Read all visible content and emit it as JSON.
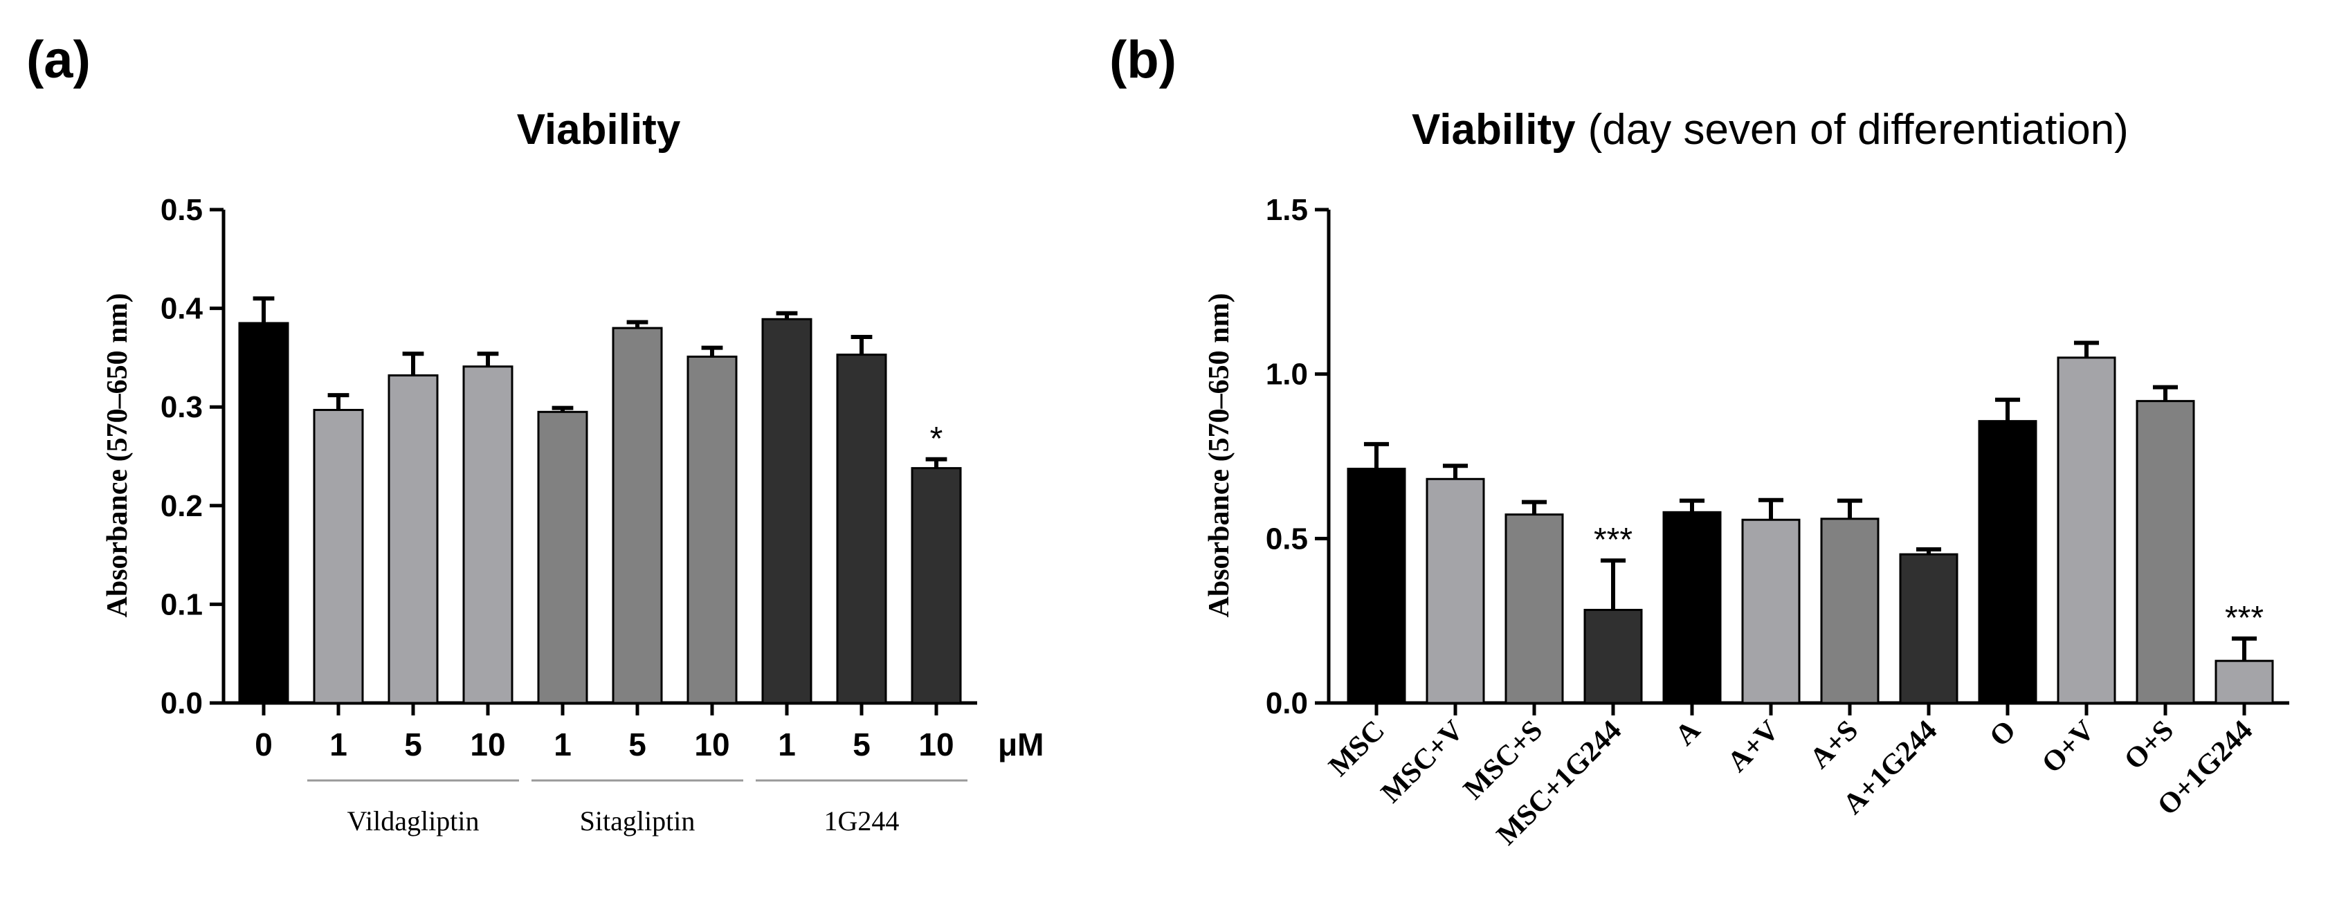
{
  "chart_data": [
    {
      "type": "bar",
      "panel_label": "(a)",
      "title": "Viability",
      "ylabel": "Absorbance (570–650 nm)",
      "ylim": [
        0,
        0.5
      ],
      "yticks": [
        "0.0",
        "0.1",
        "0.2",
        "0.3",
        "0.4",
        "0.5"
      ],
      "x_unit": "μM",
      "categories": [
        "0",
        "1",
        "5",
        "10",
        "1",
        "5",
        "10",
        "1",
        "5",
        "10"
      ],
      "values": [
        0.385,
        0.297,
        0.332,
        0.341,
        0.295,
        0.38,
        0.351,
        0.389,
        0.353,
        0.238
      ],
      "errors": [
        0.025,
        0.015,
        0.022,
        0.013,
        0.004,
        0.006,
        0.009,
        0.006,
        0.018,
        0.009
      ],
      "colors": [
        "#000000",
        "#a4a4a8",
        "#a4a4a8",
        "#a4a4a8",
        "#818181",
        "#818181",
        "#818181",
        "#303030",
        "#303030",
        "#303030"
      ],
      "groups": [
        {
          "label": "Vildagliptin",
          "start": 1,
          "end": 3
        },
        {
          "label": "Sitagliptin",
          "start": 4,
          "end": 6
        },
        {
          "label": "1G244",
          "start": 7,
          "end": 9
        }
      ],
      "annotations": [
        {
          "index": 9,
          "text": "*"
        }
      ]
    },
    {
      "type": "bar",
      "panel_label": "(b)",
      "title": "Viability",
      "subtitle": "(day seven of differentiation)",
      "ylabel": "Absorbance (570–650 nm)",
      "ylim": [
        0,
        1.5
      ],
      "yticks": [
        "0.0",
        "0.5",
        "1.0",
        "1.5"
      ],
      "categories": [
        "MSC",
        "MSC+V",
        "MSC+S",
        "MSC+1G244",
        "A",
        "A+V",
        "A+S",
        "A+1G244",
        "O",
        "O+V",
        "O+S",
        "O+1G244"
      ],
      "values": [
        0.712,
        0.681,
        0.573,
        0.283,
        0.58,
        0.557,
        0.56,
        0.452,
        0.857,
        1.05,
        0.918,
        0.128
      ],
      "errors": [
        0.075,
        0.04,
        0.038,
        0.15,
        0.035,
        0.06,
        0.055,
        0.015,
        0.065,
        0.045,
        0.042,
        0.068
      ],
      "colors": [
        "#000000",
        "#a4a4a8",
        "#818181",
        "#303030",
        "#000000",
        "#a4a4a8",
        "#818181",
        "#303030",
        "#000000",
        "#a4a4a8",
        "#818181",
        "#a4a4a8"
      ],
      "annotations": [
        {
          "index": 3,
          "text": "***"
        },
        {
          "index": 11,
          "text": "***"
        }
      ]
    }
  ]
}
